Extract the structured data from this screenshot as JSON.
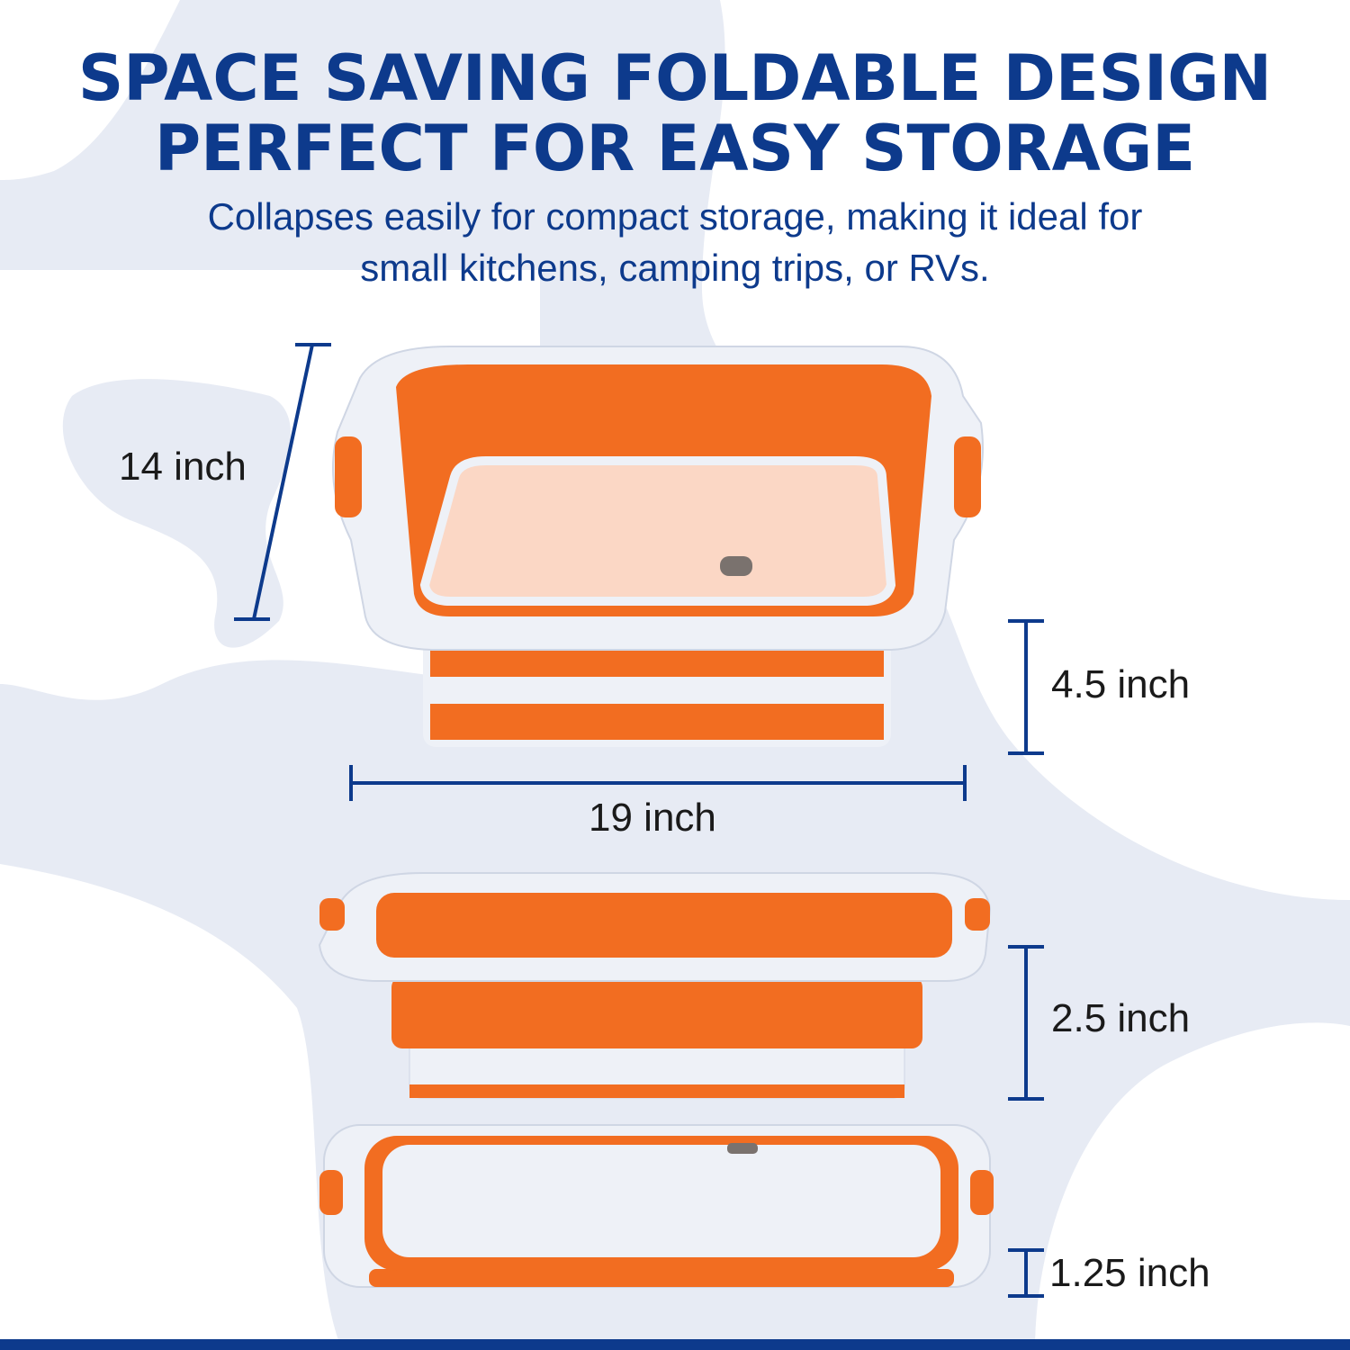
{
  "heading": {
    "line1": "SPACE SAVING FOLDABLE DESIGN",
    "line2": "PERFECT FOR EASY STORAGE"
  },
  "subtitle": {
    "line1": "Collapses easily for compact storage, making it ideal for",
    "line2": "small kitchens, camping trips, or RVs."
  },
  "dimensions": {
    "depth": "14 inch",
    "width": "19 inch",
    "height_open": "4.5 inch",
    "height_half": "2.5 inch",
    "height_folded": "1.25 inch"
  },
  "colors": {
    "brand": "#0d3a8c",
    "product_orange": "#f26d21",
    "product_white": "#eef1f7",
    "background": "#e7ebf4"
  }
}
